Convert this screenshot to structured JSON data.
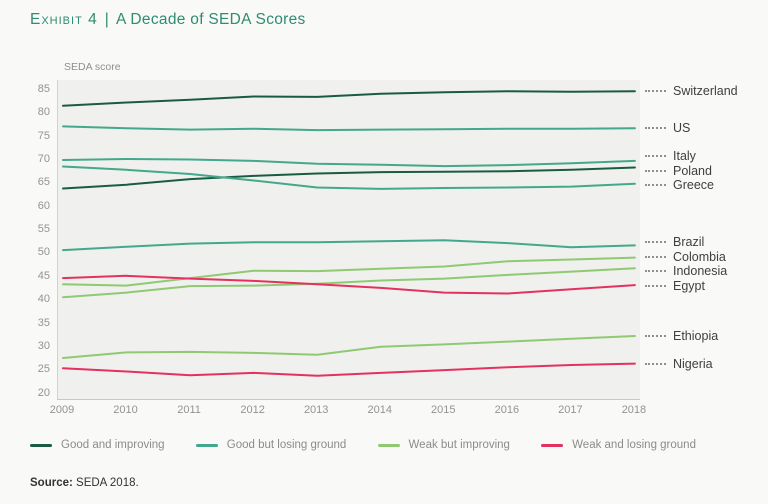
{
  "title": {
    "exhibit": "Exhibit 4",
    "separator": "|",
    "text": "A Decade of SEDA Scores"
  },
  "axis_label": "SEDA score",
  "source": {
    "label": "Source:",
    "text": " SEDA 2018."
  },
  "colors": {
    "good_improving": "#1a5c42",
    "good_losing": "#43a88c",
    "weak_improving": "#8fca73",
    "weak_losing": "#e4315e",
    "title_accent": "#2e8c72",
    "plot_background": "#f0f0ee",
    "page_background": "#f9f9f7",
    "axis_text": "#939390"
  },
  "chart_data": {
    "type": "line",
    "x": [
      2009,
      2010,
      2011,
      2012,
      2013,
      2014,
      2015,
      2016,
      2017,
      2018
    ],
    "xlabel": "",
    "ylabel": "SEDA score",
    "ylim": [
      20,
      85
    ],
    "yticks": [
      20,
      25,
      30,
      35,
      40,
      45,
      50,
      55,
      60,
      65,
      70,
      75,
      80,
      85
    ],
    "grid": false,
    "legend_position": "bottom",
    "series": [
      {
        "name": "Switzerland",
        "category": "Good and improving",
        "color": "#1a5c42",
        "values": [
          81.4,
          82.1,
          82.7,
          83.4,
          83.3,
          84.0,
          84.3,
          84.5,
          84.4,
          84.5
        ]
      },
      {
        "name": "US",
        "category": "Good but losing ground",
        "color": "#43a88c",
        "values": [
          77.0,
          76.6,
          76.3,
          76.5,
          76.2,
          76.3,
          76.4,
          76.5,
          76.5,
          76.6
        ]
      },
      {
        "name": "Italy",
        "category": "Good but losing ground",
        "color": "#43a88c",
        "values": [
          69.8,
          70.0,
          69.9,
          69.6,
          69.0,
          68.8,
          68.5,
          68.7,
          69.1,
          69.6
        ]
      },
      {
        "name": "Poland",
        "category": "Good and improving",
        "color": "#1a5c42",
        "values": [
          63.7,
          64.5,
          65.7,
          66.4,
          66.9,
          67.2,
          67.3,
          67.4,
          67.7,
          68.2
        ]
      },
      {
        "name": "Greece",
        "category": "Good but losing ground",
        "color": "#43a88c",
        "values": [
          68.4,
          67.7,
          66.8,
          65.4,
          63.9,
          63.6,
          63.8,
          63.9,
          64.1,
          64.7
        ]
      },
      {
        "name": "Brazil",
        "category": "Good but losing ground",
        "color": "#43a88c",
        "values": [
          50.5,
          51.2,
          51.9,
          52.2,
          52.2,
          52.4,
          52.6,
          52.0,
          51.1,
          51.5
        ]
      },
      {
        "name": "Colombia",
        "category": "Weak but improving",
        "color": "#8fca73",
        "values": [
          43.2,
          42.9,
          44.5,
          46.1,
          46.0,
          46.5,
          47.0,
          48.1,
          48.5,
          48.9
        ]
      },
      {
        "name": "Indonesia",
        "category": "Weak but improving",
        "color": "#8fca73",
        "values": [
          40.4,
          41.4,
          42.8,
          42.9,
          43.3,
          44.0,
          44.4,
          45.2,
          45.9,
          46.6
        ]
      },
      {
        "name": "Egypt",
        "category": "Weak and losing ground",
        "color": "#e4315e",
        "values": [
          44.5,
          45.0,
          44.4,
          43.9,
          43.2,
          42.4,
          41.4,
          41.2,
          42.1,
          43.0
        ]
      },
      {
        "name": "Ethiopia",
        "category": "Weak but improving",
        "color": "#8fca73",
        "values": [
          27.4,
          28.6,
          28.7,
          28.5,
          28.1,
          29.8,
          30.3,
          30.9,
          31.5,
          32.1
        ]
      },
      {
        "name": "Nigeria",
        "category": "Weak and losing ground",
        "color": "#e4315e",
        "values": [
          25.2,
          24.5,
          23.7,
          24.2,
          23.6,
          24.2,
          24.8,
          25.4,
          25.9,
          26.2
        ]
      }
    ],
    "legend": [
      {
        "label": "Good and improving",
        "color": "#1a5c42"
      },
      {
        "label": "Good but losing ground",
        "color": "#43a88c"
      },
      {
        "label": "Weak but improving",
        "color": "#8fca73"
      },
      {
        "label": "Weak and losing ground",
        "color": "#e4315e"
      }
    ]
  }
}
